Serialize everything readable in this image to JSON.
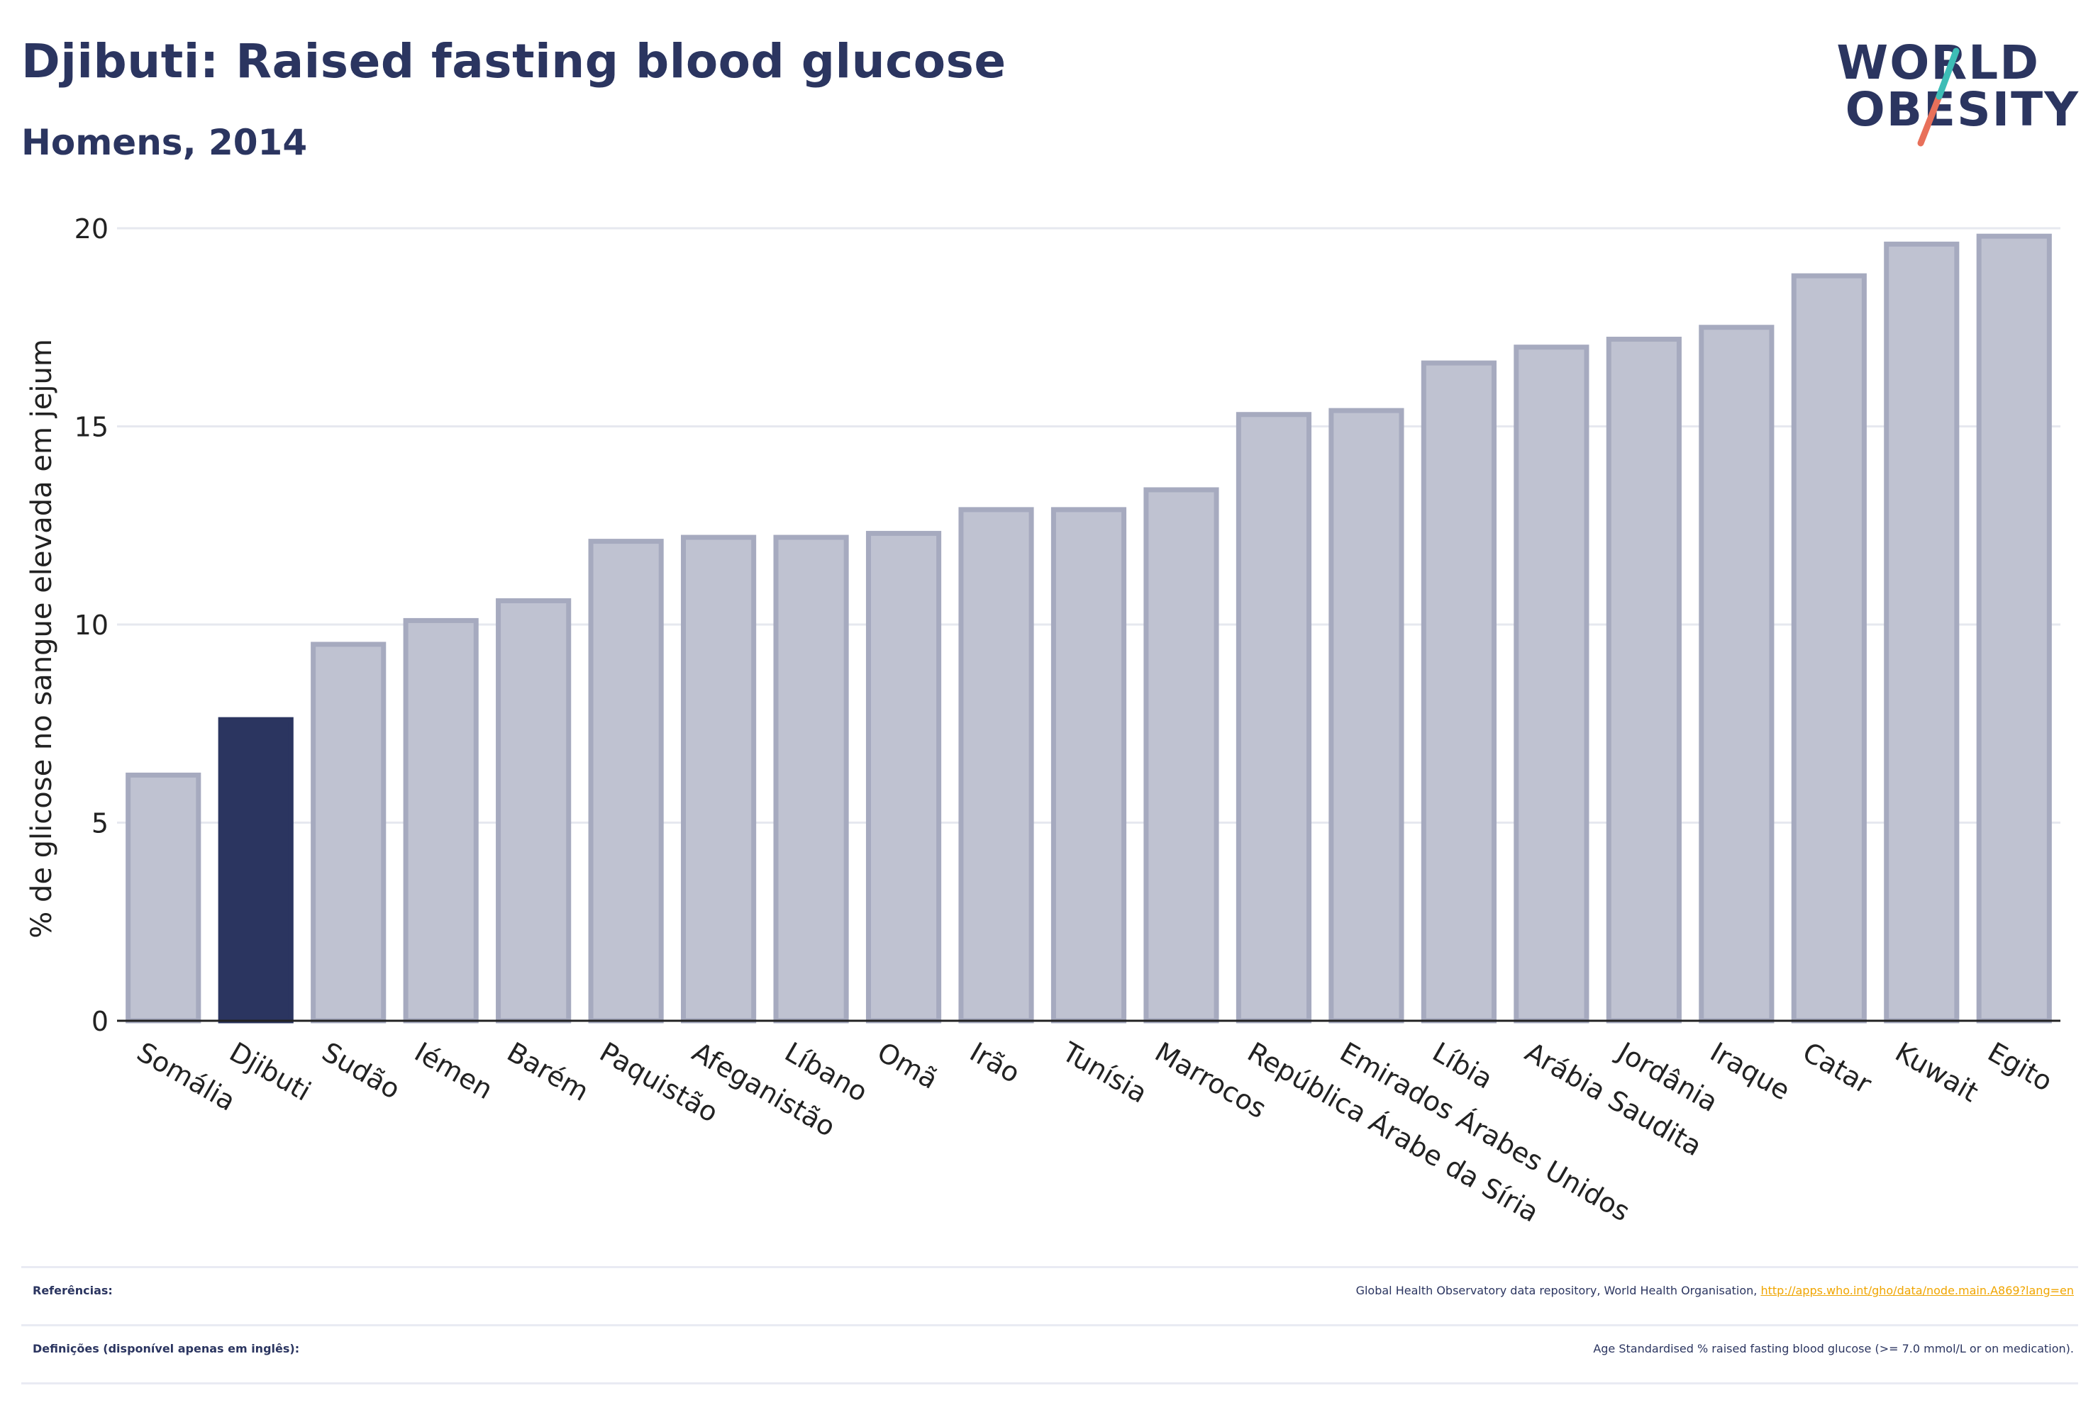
{
  "header": {
    "title": "Djibuti: Raised fasting blood glucose",
    "subtitle": "Homens, 2014"
  },
  "logo": {
    "line1": "WORLD",
    "line2": "OBESITY",
    "accent_colors": [
      "#3dbdb6",
      "#e8705a"
    ]
  },
  "chart_data": {
    "type": "bar",
    "ylabel": "% de glicose no sangue elevada em jejum",
    "ylim": [
      0,
      20
    ],
    "yticks": [
      0,
      5,
      10,
      15,
      20
    ],
    "categories": [
      "Somália",
      "Djibuti",
      "Sudão",
      "Iémen",
      "Barém",
      "Paquistão",
      "Afeganistão",
      "Líbano",
      "Omã",
      "Irão",
      "Tunísia",
      "Marrocos",
      "República Árabe da Síria",
      "Emirados Árabes Unidos",
      "Líbia",
      "Arábia Saudita",
      "Jordânia",
      "Iraque",
      "Catar",
      "Kuwait",
      "Egito"
    ],
    "values": [
      6.2,
      7.6,
      9.5,
      10.1,
      10.6,
      12.1,
      12.2,
      12.2,
      12.3,
      12.9,
      12.9,
      13.4,
      15.3,
      15.4,
      16.6,
      17.0,
      17.2,
      17.5,
      18.8,
      19.6,
      19.8
    ],
    "highlight": "Djibuti",
    "highlight_color": "#2b3560",
    "bar_color": "#bfc2d1",
    "bar_border_color": "#a6aabf",
    "grid": true
  },
  "footer": {
    "references_label": "Referências:",
    "references_text": "Global Health Observatory data repository, World Health Organisation, ",
    "references_link": "http://apps.who.int/gho/data/node.main.A869?lang=en",
    "definitions_label": "Definições (disponível apenas em inglês):",
    "definitions_text": "Age Standardised % raised fasting blood glucose (>= 7.0 mmol/L or on medication)."
  }
}
